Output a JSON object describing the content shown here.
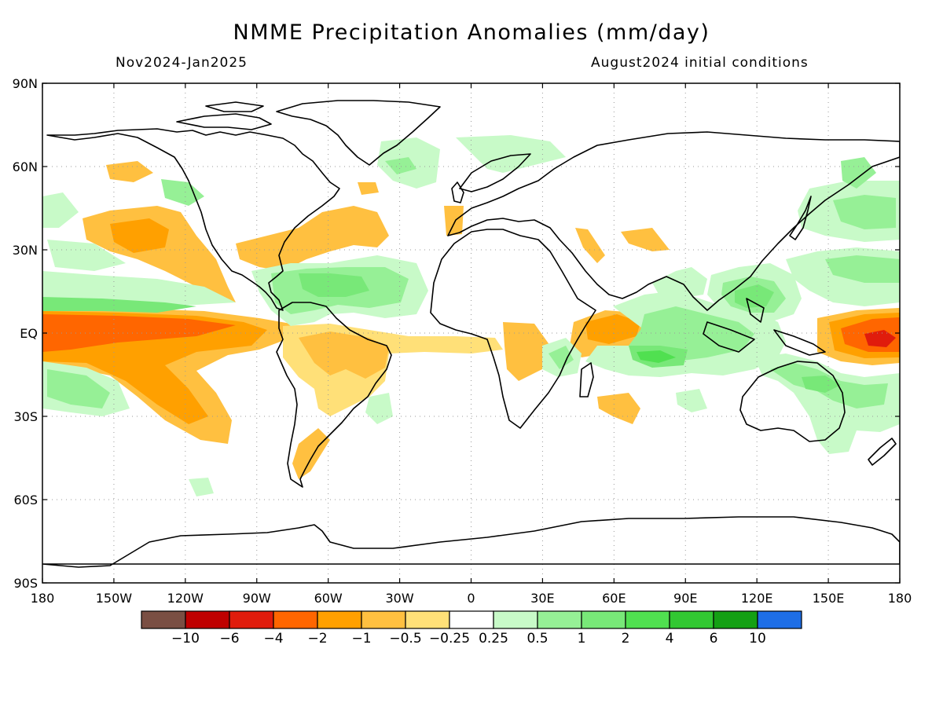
{
  "title": "NMME Precipitation Anomalies (mm/day)",
  "period": "Nov2024-Jan2025",
  "init": "August2024 initial conditions",
  "lat_labels": [
    "90N",
    "60N",
    "30N",
    "EQ",
    "30S",
    "60S",
    "90S"
  ],
  "lon_labels": [
    "180",
    "150W",
    "120W",
    "90W",
    "60W",
    "30W",
    "0",
    "30E",
    "60E",
    "90E",
    "120E",
    "150E",
    "180"
  ],
  "colorbar": {
    "colors": [
      "#7a4f43",
      "#bf0000",
      "#e01c0c",
      "#ff6600",
      "#ffa000",
      "#ffc040",
      "#ffe078",
      "#ffffff",
      "#c8fac8",
      "#96f096",
      "#78e878",
      "#50e050",
      "#32c832",
      "#14a014",
      "#1e6ee6"
    ],
    "labels": [
      "-10",
      "-6",
      "-4",
      "-2",
      "-1",
      "-0.5",
      "-0.25",
      "0.25",
      "0.5",
      "1",
      "2",
      "4",
      "6",
      "10"
    ]
  },
  "palette": {
    "dry_strong": "#e01c0c",
    "dry_mod": "#ff6600",
    "dry": "#ffa000",
    "dry_light": "#ffc040",
    "dry_faint": "#ffe078",
    "wet_faint": "#c8fac8",
    "wet_light": "#96f096",
    "wet": "#78e878",
    "wet_mod": "#50e050",
    "wet_strong": "#32c832"
  }
}
